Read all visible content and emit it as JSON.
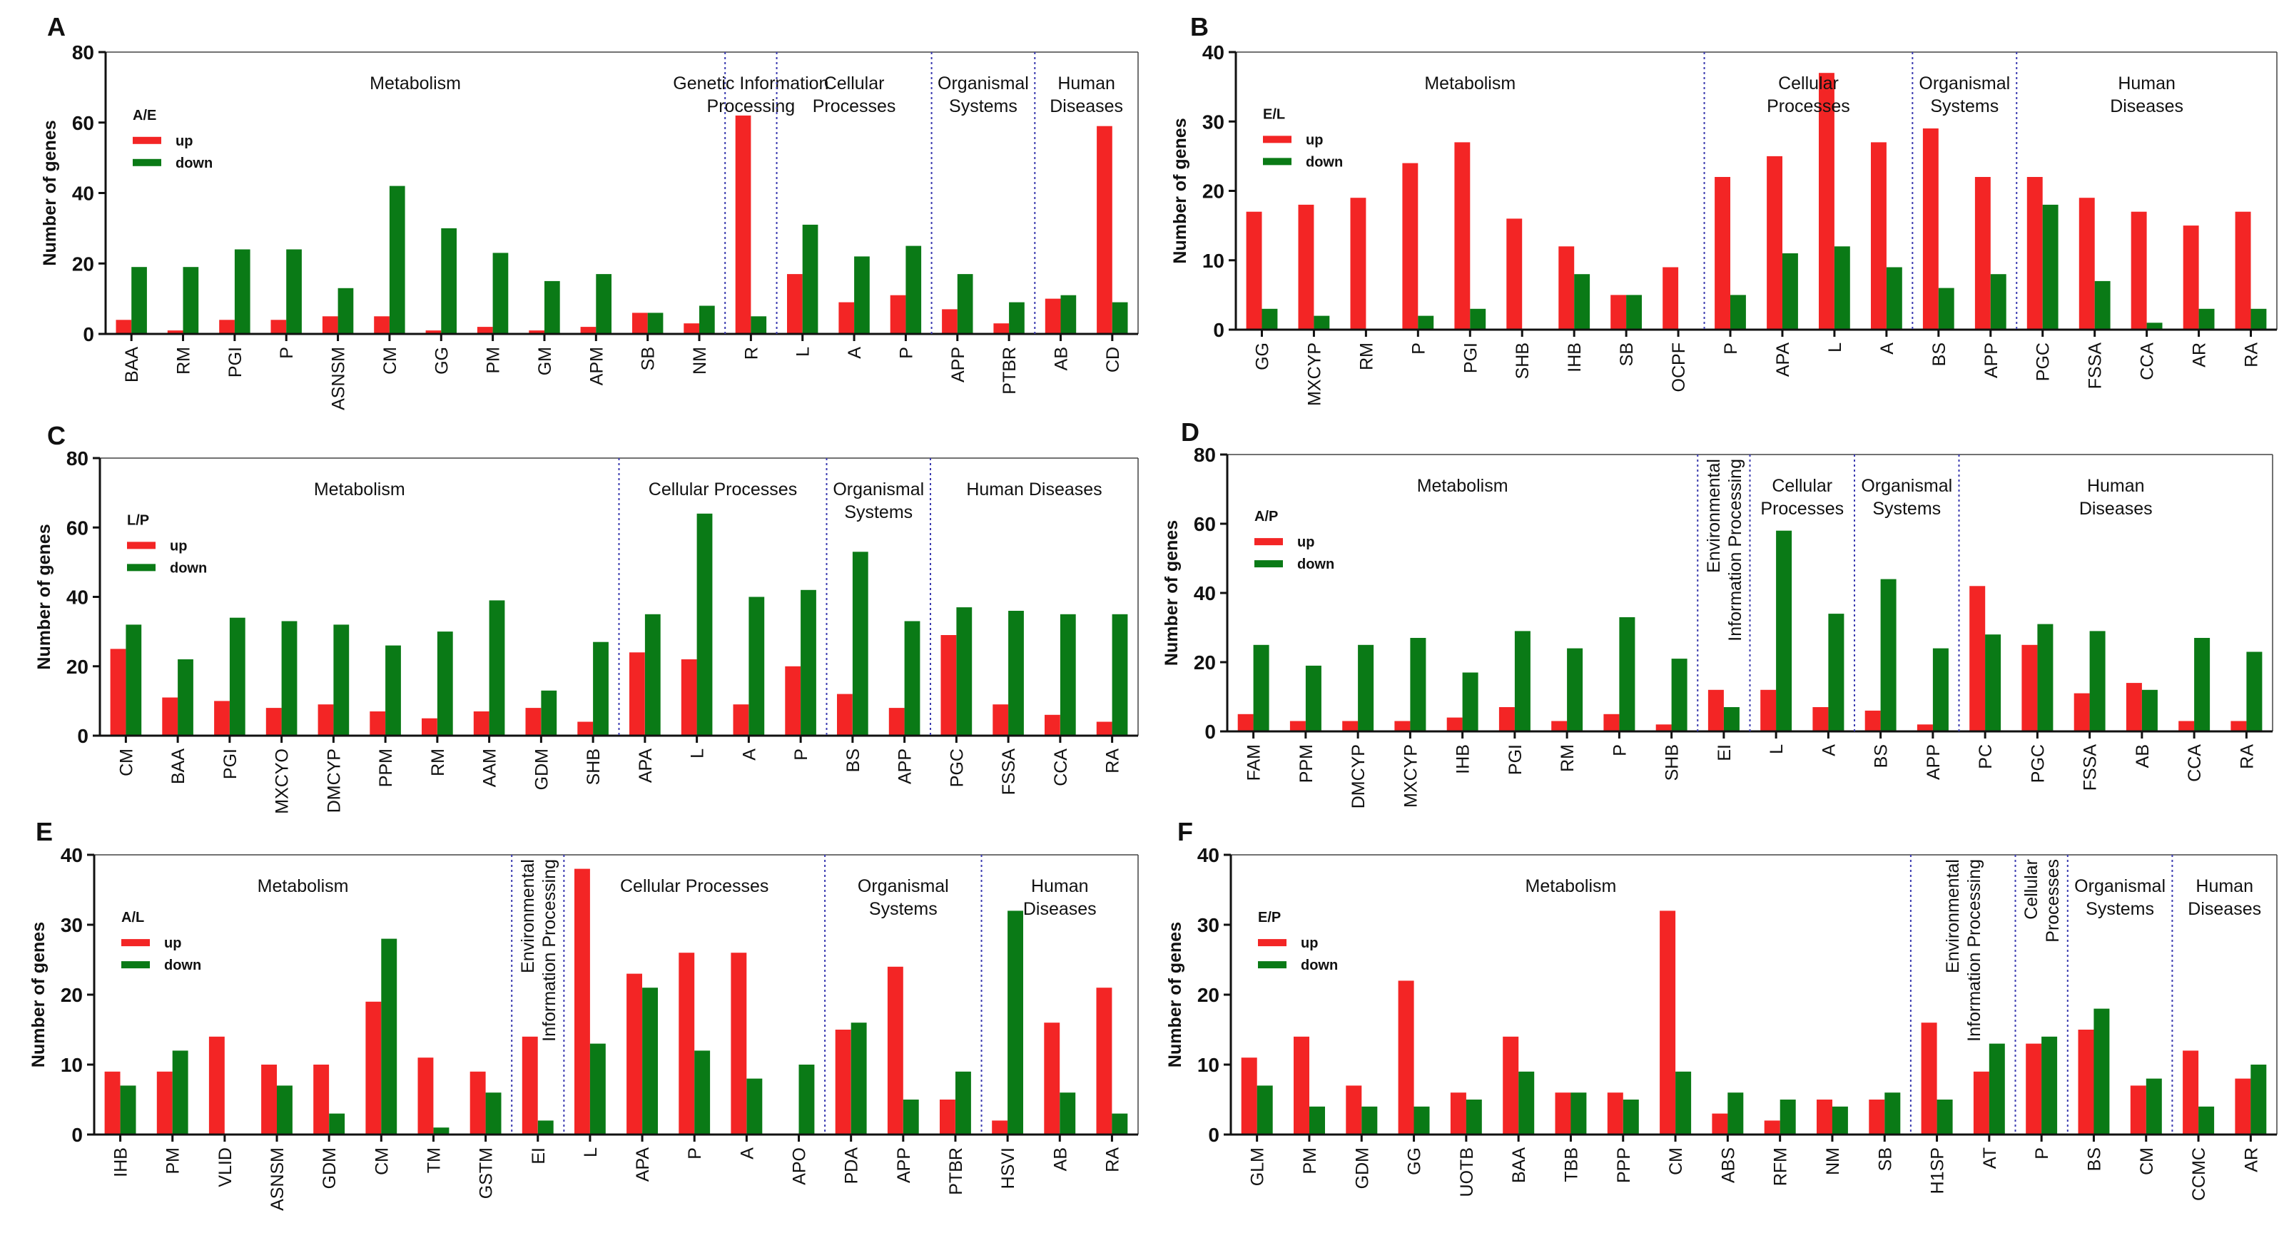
{
  "colors": {
    "up": "#f32525",
    "down": "#0a7a16",
    "divider": "#3b3bb0",
    "axis": "#111111"
  },
  "chart_data": [
    {
      "panel": "A",
      "type": "bar",
      "ylabel": "Number of genes",
      "ylim": [
        0,
        80
      ],
      "yticks": [
        0,
        20,
        40,
        60,
        80
      ],
      "legend": {
        "title": "A/E",
        "labels": [
          "up",
          "down"
        ]
      },
      "categories": [
        "BAA",
        "RM",
        "PGI",
        "P",
        "ASNSM",
        "CM",
        "GG",
        "PM",
        "GM",
        "APM",
        "SB",
        "NM",
        "R",
        "L",
        "A",
        "P",
        "APP",
        "PTBR",
        "AB",
        "CD"
      ],
      "series": [
        {
          "name": "up",
          "values": [
            4,
            1,
            4,
            4,
            5,
            5,
            1,
            2,
            1,
            2,
            6,
            3,
            62,
            17,
            9,
            11,
            7,
            3,
            10,
            59
          ]
        },
        {
          "name": "down",
          "values": [
            19,
            19,
            24,
            24,
            13,
            42,
            30,
            23,
            15,
            17,
            6,
            8,
            5,
            31,
            22,
            25,
            17,
            9,
            11,
            9
          ]
        }
      ],
      "groups": [
        {
          "lines": [
            "Metabolism"
          ],
          "start": 0,
          "end": 11
        },
        {
          "lines": [
            "Genetic Information",
            "Processing"
          ],
          "start": 12,
          "end": 12
        },
        {
          "lines": [
            "Cellular",
            "Processes"
          ],
          "start": 13,
          "end": 15
        },
        {
          "lines": [
            "Organismal",
            "Systems"
          ],
          "start": 16,
          "end": 17
        },
        {
          "lines": [
            "Human",
            "Diseases"
          ],
          "start": 18,
          "end": 19
        }
      ]
    },
    {
      "panel": "B",
      "type": "bar",
      "ylabel": "Number of genes",
      "ylim": [
        0,
        40
      ],
      "yticks": [
        0,
        10,
        20,
        30,
        40
      ],
      "legend": {
        "title": "E/L",
        "labels": [
          "up",
          "down"
        ]
      },
      "categories": [
        "GG",
        "MXCYP",
        "RM",
        "P",
        "PGI",
        "SHB",
        "IHB",
        "SB",
        "OCPF",
        "P",
        "APA",
        "L",
        "A",
        "BS",
        "APP",
        "PGC",
        "FSSA",
        "CCA",
        "AR",
        "RA"
      ],
      "series": [
        {
          "name": "up",
          "values": [
            17,
            18,
            19,
            24,
            27,
            16,
            12,
            5,
            9,
            22,
            25,
            37,
            27,
            29,
            22,
            22,
            19,
            17,
            15,
            17
          ]
        },
        {
          "name": "down",
          "values": [
            3,
            2,
            0,
            2,
            3,
            0,
            8,
            5,
            0,
            5,
            11,
            12,
            9,
            6,
            8,
            18,
            7,
            1,
            3,
            3
          ]
        }
      ],
      "groups": [
        {
          "lines": [
            "Metabolism"
          ],
          "start": 0,
          "end": 8
        },
        {
          "lines": [
            "Cellular",
            "Processes"
          ],
          "start": 9,
          "end": 12
        },
        {
          "lines": [
            "Organismal",
            "Systems"
          ],
          "start": 13,
          "end": 14
        },
        {
          "lines": [
            "Human",
            "Diseases"
          ],
          "start": 15,
          "end": 19
        }
      ]
    },
    {
      "panel": "C",
      "type": "bar",
      "ylabel": "Number of genes",
      "ylim": [
        0,
        80
      ],
      "yticks": [
        0,
        20,
        40,
        60,
        80
      ],
      "legend": {
        "title": "L/P",
        "labels": [
          "up",
          "down"
        ]
      },
      "categories": [
        "CM",
        "BAA",
        "PGI",
        "MXCYO",
        "DMCYP",
        "PPM",
        "RM",
        "AAM",
        "GDM",
        "SHB",
        "APA",
        "L",
        "A",
        "P",
        "BS",
        "APP",
        "PGC",
        "FSSA",
        "CCA",
        "RA"
      ],
      "series": [
        {
          "name": "up",
          "values": [
            25,
            11,
            10,
            8,
            9,
            7,
            5,
            7,
            8,
            4,
            24,
            22,
            9,
            20,
            12,
            8,
            29,
            9,
            6,
            4
          ]
        },
        {
          "name": "down",
          "values": [
            32,
            22,
            34,
            33,
            32,
            26,
            30,
            39,
            13,
            27,
            35,
            64,
            40,
            42,
            53,
            33,
            37,
            36,
            35,
            35
          ]
        }
      ],
      "groups": [
        {
          "lines": [
            "Metabolism"
          ],
          "start": 0,
          "end": 9
        },
        {
          "lines": [
            "Cellular Processes"
          ],
          "start": 10,
          "end": 13
        },
        {
          "lines": [
            "Organismal",
            "Systems"
          ],
          "start": 14,
          "end": 15
        },
        {
          "lines": [
            "Human Diseases"
          ],
          "start": 16,
          "end": 19
        }
      ]
    },
    {
      "panel": "D",
      "type": "bar",
      "ylabel": "Number of genes",
      "ylim": [
        0,
        80
      ],
      "yticks": [
        0,
        20,
        40,
        60,
        80
      ],
      "legend": {
        "title": "A/P",
        "labels": [
          "up",
          "down"
        ]
      },
      "categories": [
        "FAM",
        "PPM",
        "DMCYP",
        "MXCYP",
        "IHB",
        "PGI",
        "RM",
        "P",
        "SHB",
        "EI",
        "L",
        "A",
        "BS",
        "APP",
        "PC",
        "PGC",
        "FSSA",
        "AB",
        "CCA",
        "RA"
      ],
      "series": [
        {
          "name": "up",
          "values": [
            5,
            3,
            3,
            3,
            4,
            7,
            3,
            5,
            2,
            12,
            12,
            7,
            6,
            2,
            42,
            25,
            11,
            14,
            3,
            3
          ]
        },
        {
          "name": "down",
          "values": [
            25,
            19,
            25,
            27,
            17,
            29,
            24,
            33,
            21,
            7,
            58,
            34,
            44,
            24,
            28,
            31,
            29,
            12,
            27,
            23
          ]
        }
      ],
      "groups": [
        {
          "lines": [
            "Metabolism"
          ],
          "start": 0,
          "end": 8
        },
        {
          "lines": [
            "Environmental",
            "Information Processing"
          ],
          "start": 9,
          "end": 9,
          "vertical": true
        },
        {
          "lines": [
            "Cellular",
            "Processes"
          ],
          "start": 10,
          "end": 11
        },
        {
          "lines": [
            "Organismal",
            "Systems"
          ],
          "start": 12,
          "end": 13
        },
        {
          "lines": [
            "Human",
            "Diseases"
          ],
          "start": 14,
          "end": 19
        }
      ]
    },
    {
      "panel": "E",
      "type": "bar",
      "ylabel": "Number of genes",
      "ylim": [
        0,
        40
      ],
      "yticks": [
        0,
        10,
        20,
        30,
        40
      ],
      "legend": {
        "title": "A/L",
        "labels": [
          "up",
          "down"
        ]
      },
      "categories": [
        "IHB",
        "PM",
        "VLID",
        "ASNSM",
        "GDM",
        "CM",
        "TM",
        "GSTM",
        "EI",
        "L",
        "APA",
        "P",
        "A",
        "APO",
        "PDA",
        "APP",
        "PTBR",
        "HSVI",
        "AB",
        "RA"
      ],
      "series": [
        {
          "name": "up",
          "values": [
            9,
            9,
            14,
            10,
            10,
            19,
            11,
            9,
            14,
            38,
            23,
            26,
            26,
            0,
            15,
            24,
            5,
            2,
            16,
            21
          ]
        },
        {
          "name": "down",
          "values": [
            7,
            12,
            0,
            7,
            3,
            28,
            1,
            6,
            2,
            13,
            21,
            12,
            8,
            10,
            16,
            5,
            9,
            32,
            6,
            3
          ]
        }
      ],
      "groups": [
        {
          "lines": [
            "Metabolism"
          ],
          "start": 0,
          "end": 7
        },
        {
          "lines": [
            "Environmental",
            "Information Processing"
          ],
          "start": 8,
          "end": 8,
          "vertical": true
        },
        {
          "lines": [
            "Cellular Processes"
          ],
          "start": 9,
          "end": 13
        },
        {
          "lines": [
            "Organismal",
            "Systems"
          ],
          "start": 14,
          "end": 16
        },
        {
          "lines": [
            "Human",
            "Diseases"
          ],
          "start": 17,
          "end": 19
        }
      ]
    },
    {
      "panel": "F",
      "type": "bar",
      "ylabel": "Number of genes",
      "ylim": [
        0,
        40
      ],
      "yticks": [
        0,
        10,
        20,
        30,
        40
      ],
      "legend": {
        "title": "E/P",
        "labels": [
          "up",
          "down"
        ]
      },
      "categories": [
        "GLM",
        "PM",
        "GDM",
        "GG",
        "UOTB",
        "BAA",
        "TBB",
        "PPP",
        "CM",
        "ABS",
        "RFM",
        "NM",
        "SB",
        "H1SP",
        "AT",
        "P",
        "BS",
        "CM",
        "CCMC",
        "AR"
      ],
      "series": [
        {
          "name": "up",
          "values": [
            11,
            14,
            7,
            22,
            6,
            14,
            6,
            6,
            32,
            3,
            2,
            5,
            5,
            16,
            9,
            13,
            15,
            7,
            12,
            8
          ]
        },
        {
          "name": "down",
          "values": [
            7,
            4,
            4,
            4,
            5,
            9,
            6,
            5,
            9,
            6,
            5,
            4,
            6,
            5,
            13,
            14,
            18,
            8,
            4,
            10
          ]
        }
      ],
      "groups": [
        {
          "lines": [
            "Metabolism"
          ],
          "start": 0,
          "end": 12
        },
        {
          "lines": [
            "Environmental",
            "Information Processing"
          ],
          "start": 13,
          "end": 14,
          "vertical": true
        },
        {
          "lines": [
            "Cellular",
            "Processes"
          ],
          "start": 15,
          "end": 15,
          "vertical": true
        },
        {
          "lines": [
            "Organismal",
            "Systems"
          ],
          "start": 16,
          "end": 17
        },
        {
          "lines": [
            "Human",
            "Diseases"
          ],
          "start": 18,
          "end": 19
        }
      ]
    }
  ]
}
